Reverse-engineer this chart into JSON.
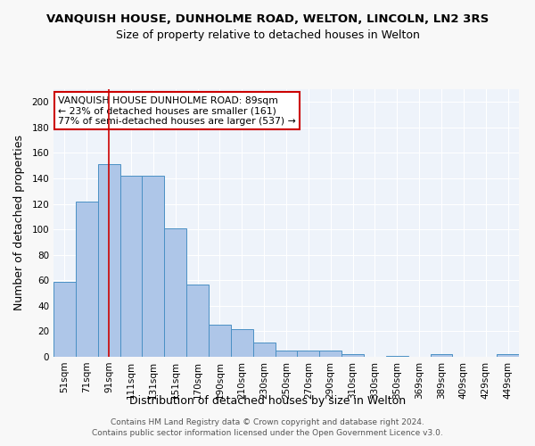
{
  "title": "VANQUISH HOUSE, DUNHOLME ROAD, WELTON, LINCOLN, LN2 3RS",
  "subtitle": "Size of property relative to detached houses in Welton",
  "xlabel": "Distribution of detached houses by size in Welton",
  "ylabel": "Number of detached properties",
  "footer_line1": "Contains HM Land Registry data © Crown copyright and database right 2024.",
  "footer_line2": "Contains public sector information licensed under the Open Government Licence v3.0.",
  "bin_labels": [
    "51sqm",
    "71sqm",
    "91sqm",
    "111sqm",
    "131sqm",
    "151sqm",
    "170sqm",
    "190sqm",
    "210sqm",
    "230sqm",
    "250sqm",
    "270sqm",
    "290sqm",
    "310sqm",
    "330sqm",
    "350sqm",
    "369sqm",
    "389sqm",
    "409sqm",
    "429sqm",
    "449sqm"
  ],
  "bar_heights": [
    59,
    122,
    151,
    142,
    142,
    101,
    57,
    25,
    22,
    11,
    5,
    5,
    5,
    2,
    0,
    1,
    0,
    2,
    0,
    0,
    2
  ],
  "bar_color": "#aec6e8",
  "bar_edge_color": "#4a90c4",
  "bg_color": "#eef3fa",
  "grid_color": "#ffffff",
  "vline_x": 2,
  "vline_color": "#cc0000",
  "annotation_text": "VANQUISH HOUSE DUNHOLME ROAD: 89sqm\n← 23% of detached houses are smaller (161)\n77% of semi-detached houses are larger (537) →",
  "annotation_box_color": "#ffffff",
  "annotation_box_edge": "#cc0000",
  "ylim": [
    0,
    210
  ],
  "yticks": [
    0,
    20,
    40,
    60,
    80,
    100,
    120,
    140,
    160,
    180,
    200
  ],
  "title_fontsize": 9.5,
  "subtitle_fontsize": 9,
  "axis_label_fontsize": 9,
  "tick_fontsize": 7.5,
  "annotation_fontsize": 7.8,
  "footer_fontsize": 6.5
}
